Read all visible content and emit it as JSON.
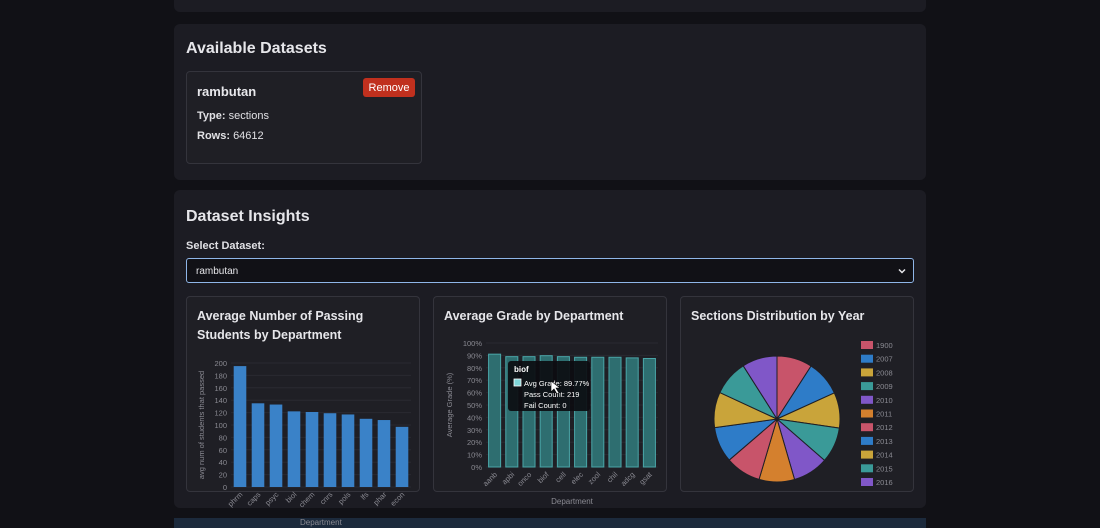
{
  "datasets_section": {
    "title": "Available Datasets",
    "dataset": {
      "name": "rambutan",
      "remove_label": "Remove",
      "type_label": "Type:",
      "type_value": "sections",
      "rows_label": "Rows:",
      "rows_value": "64612"
    }
  },
  "insights_section": {
    "title": "Dataset Insights",
    "select_label": "Select Dataset:",
    "selected_dataset": "rambutan"
  },
  "colors": {
    "bar_blue": "#3a82c8",
    "bar_teal": "#4aa6a8",
    "remove_red": "#c0301e",
    "focus_border": "#8fb6e8"
  },
  "charts": {
    "passing": {
      "title_line1": "Average Number of Passing",
      "title_line2": "Students by Department"
    },
    "grade": {
      "title": "Average Grade by Department"
    },
    "years": {
      "title": "Sections Distribution by Year"
    }
  },
  "tooltip": {
    "title": "biof",
    "line1": "Avg Grade: 89.77%",
    "line2": "Pass Count: 219",
    "line3": "Fail Count: 0"
  },
  "bottom_label": "Department",
  "chart_data": [
    {
      "type": "bar",
      "title": "Average Number of Passing Students by Department",
      "xlabel": "",
      "ylabel": "avg num of students that passed",
      "ylim": [
        0,
        200
      ],
      "yticks": [
        "0",
        "20",
        "40",
        "60",
        "80",
        "100",
        "120",
        "140",
        "160",
        "180",
        "200"
      ],
      "categories": [
        "phrm",
        "caps",
        "psyc",
        "biol",
        "chem",
        "cnrs",
        "pols",
        "lfs",
        "phar",
        "econ"
      ],
      "values": [
        195,
        135,
        133,
        122,
        121,
        119,
        117,
        110,
        108,
        97
      ]
    },
    {
      "type": "bar",
      "title": "Average Grade by Department",
      "xlabel": "Department",
      "ylabel": "Average Grade (%)",
      "ylim": [
        0,
        100
      ],
      "yticks": [
        "0%",
        "10%",
        "20%",
        "30%",
        "40%",
        "50%",
        "60%",
        "70%",
        "80%",
        "90%",
        "100%"
      ],
      "categories": [
        "aanb",
        "apbi",
        "onco",
        "biof",
        "cell",
        "elec",
        "zool",
        "chil",
        "adcg",
        "gsat"
      ],
      "values": [
        91,
        89,
        89,
        89.77,
        89,
        88.5,
        88.5,
        88.5,
        88,
        87.5
      ]
    },
    {
      "type": "pie",
      "title": "Sections Distribution by Year",
      "legend": [
        "1900",
        "2007",
        "2008",
        "2009",
        "2010",
        "2011",
        "2012",
        "2013",
        "2014",
        "2015",
        "2016"
      ],
      "values": [
        9.1,
        9.1,
        9.1,
        9.1,
        9.1,
        9.1,
        9.1,
        9.1,
        9.1,
        9.1,
        9.0
      ],
      "colors": [
        "#c8546a",
        "#2e7cc8",
        "#c9a43a",
        "#3a9a98",
        "#8057c8",
        "#d4802e",
        "#c8546a",
        "#2e7cc8",
        "#c9a43a",
        "#3a9a98",
        "#8057c8"
      ]
    }
  ]
}
